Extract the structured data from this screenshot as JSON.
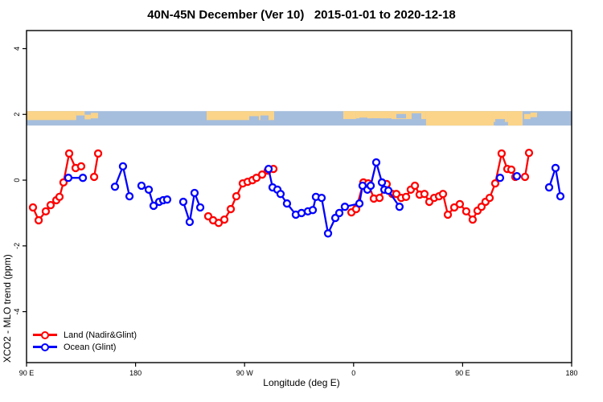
{
  "colors": {
    "land_series": "#ff0000",
    "ocean_series": "#0000ff",
    "map_land": "#fbd489",
    "map_ocean": "#a6bedd",
    "axis": "#000000",
    "background": "#ffffff"
  },
  "chart_data": {
    "type": "line",
    "title": "40N-45N December (Ver 10)   2015-01-01 to 2020-12-18",
    "xlabel": "Longitude (deg E)",
    "ylabel": "XCO2 - MLO trend (ppm)",
    "xlim": [
      90,
      540
    ],
    "ylim": [
      -5.55,
      4.55
    ],
    "grid": false,
    "legend_position": "bottom-left-inside",
    "x_ticks": [
      {
        "v": 90,
        "label": "90 E"
      },
      {
        "v": 180,
        "label": "180"
      },
      {
        "v": 270,
        "label": "90 W"
      },
      {
        "v": 360,
        "label": "0"
      },
      {
        "v": 450,
        "label": "90 E"
      },
      {
        "v": 540,
        "label": "180"
      }
    ],
    "y_ticks": [
      {
        "v": 4,
        "label": "4"
      },
      {
        "v": 2,
        "label": "2"
      },
      {
        "v": 0,
        "label": "0"
      },
      {
        "v": -2,
        "label": "-2"
      },
      {
        "v": -4,
        "label": "-4"
      }
    ],
    "legend": [
      {
        "label": "Land (Nadir&Glint)"
      },
      {
        "label": "Ocean (Glint)"
      }
    ],
    "series": [
      {
        "name": "Land (Nadir&Glint)",
        "color": "#ff0000",
        "clusters": [
          [
            [
              95.3,
              -0.83
            ],
            [
              100.0,
              -1.22
            ],
            [
              105.9,
              -0.95
            ],
            [
              109.9,
              -0.76
            ],
            [
              114.6,
              -0.61
            ],
            [
              117.2,
              -0.51
            ],
            [
              120.5,
              -0.07
            ],
            [
              125.2,
              0.81
            ],
            [
              130.5,
              0.37
            ],
            [
              135.1,
              0.42
            ]
          ],
          [
            [
              145.8,
              0.1
            ],
            [
              149.1,
              0.81
            ]
          ],
          [
            [
              240.0,
              -1.1
            ],
            [
              244.0,
              -1.22
            ],
            [
              248.6,
              -1.3
            ],
            [
              253.3,
              -1.2
            ],
            [
              258.6,
              -0.88
            ],
            [
              263.2,
              -0.49
            ],
            [
              268.5,
              -0.1
            ],
            [
              272.5,
              -0.05
            ],
            [
              276.5,
              0.0
            ],
            [
              279.8,
              0.07
            ],
            [
              284.5,
              0.17
            ],
            [
              289.1,
              0.29
            ],
            [
              293.8,
              0.34
            ]
          ],
          [
            [
              358.2,
              -0.98
            ],
            [
              362.1,
              -0.88
            ],
            [
              368.1,
              -0.07
            ],
            [
              372.1,
              -0.1
            ],
            [
              376.7,
              -0.56
            ],
            [
              381.4,
              -0.54
            ],
            [
              387.3,
              -0.12
            ],
            [
              392.0,
              -0.42
            ],
            [
              395.3,
              -0.42
            ],
            [
              399.3,
              -0.54
            ],
            [
              403.3,
              -0.51
            ],
            [
              407.2,
              -0.29
            ],
            [
              410.6,
              -0.17
            ],
            [
              414.5,
              -0.44
            ],
            [
              418.5,
              -0.42
            ],
            [
              422.5,
              -0.66
            ],
            [
              426.5,
              -0.54
            ],
            [
              430.5,
              -0.49
            ],
            [
              433.8,
              -0.42
            ],
            [
              437.8,
              -1.05
            ],
            [
              443.1,
              -0.83
            ],
            [
              447.7,
              -0.73
            ],
            [
              453.0,
              -0.95
            ],
            [
              458.3,
              -1.2
            ],
            [
              462.3,
              -0.93
            ],
            [
              465.6,
              -0.81
            ],
            [
              468.9,
              -0.66
            ],
            [
              472.3,
              -0.54
            ],
            [
              476.9,
              -0.1
            ],
            [
              482.2,
              0.81
            ],
            [
              486.9,
              0.34
            ],
            [
              490.2,
              0.32
            ],
            [
              493.5,
              0.1
            ]
          ],
          [
            [
              501.5,
              0.1
            ],
            [
              504.8,
              0.83
            ]
          ]
        ]
      },
      {
        "name": "Ocean (Glint)",
        "color": "#0000ff",
        "clusters": [
          [
            [
              124.5,
              0.07
            ],
            [
              136.5,
              0.07
            ]
          ],
          [
            [
              163.0,
              -0.2
            ],
            [
              169.6,
              0.42
            ],
            [
              175.0,
              -0.49
            ]
          ],
          [
            [
              184.9,
              -0.17
            ],
            [
              190.9,
              -0.29
            ],
            [
              194.9,
              -0.78
            ],
            [
              199.5,
              -0.66
            ],
            [
              202.8,
              -0.61
            ],
            [
              206.1,
              -0.59
            ]
          ],
          [
            [
              219.4,
              -0.66
            ],
            [
              224.7,
              -1.27
            ],
            [
              228.7,
              -0.39
            ],
            [
              233.4,
              -0.83
            ]
          ],
          [
            [
              289.8,
              0.34
            ],
            [
              293.1,
              -0.22
            ],
            [
              297.1,
              -0.29
            ],
            [
              299.7,
              -0.42
            ],
            [
              305.0,
              -0.71
            ],
            [
              312.3,
              -1.05
            ],
            [
              317.0,
              -1.0
            ],
            [
              322.3,
              -0.95
            ],
            [
              326.3,
              -0.91
            ],
            [
              328.9,
              -0.51
            ],
            [
              333.6,
              -0.54
            ],
            [
              338.9,
              -1.62
            ],
            [
              344.9,
              -1.15
            ],
            [
              348.2,
              -1.0
            ],
            [
              352.8,
              -0.81
            ],
            [
              364.8,
              -0.71
            ],
            [
              367.4,
              -0.17
            ],
            [
              371.4,
              -0.29
            ],
            [
              374.1,
              -0.17
            ],
            [
              378.7,
              0.54
            ],
            [
              383.4,
              -0.07
            ],
            [
              385.4,
              -0.29
            ],
            [
              388.7,
              -0.32
            ],
            [
              397.9,
              -0.81
            ]
          ],
          [
            [
              480.9,
              0.07
            ]
          ],
          [
            [
              494.8,
              0.12
            ]
          ],
          [
            [
              521.4,
              -0.22
            ],
            [
              526.7,
              0.37
            ],
            [
              530.7,
              -0.49
            ]
          ]
        ]
      }
    ],
    "map_strip": {
      "description": "land/ocean mini-map band for 40N-45N",
      "top_ppm": 2.1,
      "bottom_ppm": 1.66,
      "land_color": "#fbd489",
      "ocean_color": "#a6bedd",
      "land_rects": [
        [
          90,
          131,
          0,
          0.62
        ],
        [
          131,
          138,
          0,
          0.3
        ],
        [
          138,
          143,
          0.25,
          0.32
        ],
        [
          143,
          149,
          0.12,
          0.38
        ],
        [
          238.7,
          294.4,
          0,
          0.62
        ],
        [
          351.5,
          362,
          0,
          0.55
        ],
        [
          362,
          391.3,
          0,
          0.5
        ],
        [
          391.3,
          419.8,
          0,
          0.55
        ],
        [
          419.8,
          475.6,
          0,
          1
        ],
        [
          475.6,
          487.5,
          0,
          0.75
        ],
        [
          487.5,
          499.5,
          0,
          1
        ],
        [
          500.8,
          506,
          0.2,
          0.35
        ],
        [
          506,
          511.4,
          0.1,
          0.32
        ]
      ],
      "ocean_patches": [
        [
          273.8,
          281.8,
          0.35,
          0.3
        ],
        [
          283.1,
          289.8,
          0.3,
          0.32
        ],
        [
          364.8,
          371.4,
          0.45,
          0.35
        ],
        [
          374.7,
          381.4,
          0.5,
          0.3
        ],
        [
          395.3,
          403.3,
          0.2,
          0.3
        ],
        [
          407.9,
          415.9,
          0.15,
          0.4
        ],
        [
          476.9,
          484.9,
          0.55,
          0.45
        ]
      ]
    }
  }
}
